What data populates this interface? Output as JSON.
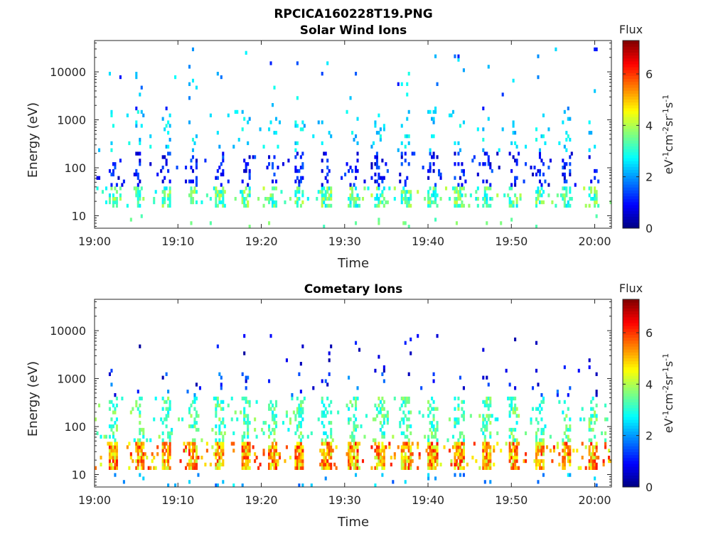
{
  "figure": {
    "title": "RPCICA160228T19.PNG"
  },
  "chart_data": [
    {
      "type": "heatmap",
      "title": "Solar Wind Ions",
      "xlabel": "Time",
      "ylabel": "Energy (eV)",
      "x_ticks": [
        "19:00",
        "19:10",
        "19:20",
        "19:30",
        "19:40",
        "19:50",
        "20:00"
      ],
      "x_range_minutes": [
        0,
        62
      ],
      "y_ticks": [
        "10",
        "100",
        "1000",
        "10000"
      ],
      "y_scale": "log",
      "y_range": [
        5.5,
        45000
      ],
      "sweep_period_minutes": 3.2,
      "sweep_start_minutes": 1.6,
      "bands": [
        {
          "energy_range": [
            16,
            40
          ],
          "flux_range": [
            2.5,
            4.2
          ],
          "density": 0.55
        },
        {
          "energy_range": [
            40,
            220
          ],
          "flux_range": [
            0.4,
            1.6
          ],
          "density": 0.22
        },
        {
          "energy_range": [
            200,
            1600
          ],
          "flux_range": [
            2.0,
            3.0
          ],
          "density": 0.09
        },
        {
          "energy_range": [
            1000,
            30000
          ],
          "flux_range": [
            1.0,
            3.0
          ],
          "density": 0.025
        },
        {
          "energy_range": [
            5.5,
            10
          ],
          "flux_range": [
            3.2,
            3.8
          ],
          "density": 0.05
        }
      ],
      "colorbar": {
        "title": "Flux",
        "label": "eV-1cm-2sr-1s-1",
        "label_parts": [
          {
            "text": "eV"
          },
          {
            "sup": "-1"
          },
          {
            "text": "cm"
          },
          {
            "sup": "-2"
          },
          {
            "text": "sr"
          },
          {
            "sup": "-1"
          },
          {
            "text": "s"
          },
          {
            "sup": "-1"
          }
        ],
        "range": [
          0,
          7.3
        ],
        "ticks": [
          "0",
          "2",
          "4",
          "6"
        ],
        "colormap": "jet"
      },
      "grid": false
    },
    {
      "type": "heatmap",
      "title": "Cometary Ions",
      "xlabel": "Time",
      "ylabel": "Energy (eV)",
      "x_ticks": [
        "19:00",
        "19:10",
        "19:20",
        "19:30",
        "19:40",
        "19:50",
        "20:00"
      ],
      "x_range_minutes": [
        0,
        62
      ],
      "y_ticks": [
        "10",
        "100",
        "1000",
        "10000"
      ],
      "y_scale": "log",
      "y_range": [
        5.5,
        45000
      ],
      "sweep_period_minutes": 3.2,
      "sweep_start_minutes": 1.6,
      "bands": [
        {
          "energy_range": [
            12,
            45
          ],
          "flux_range": [
            4.0,
            6.3
          ],
          "density": 0.85
        },
        {
          "energy_range": [
            45,
            400
          ],
          "flux_range": [
            2.6,
            4.0
          ],
          "density": 0.35
        },
        {
          "energy_range": [
            150,
            1500
          ],
          "flux_range": [
            0.3,
            2.0
          ],
          "density": 0.05
        },
        {
          "energy_range": [
            1500,
            8000
          ],
          "flux_range": [
            0.2,
            1.2
          ],
          "density": 0.02
        },
        {
          "energy_range": [
            5.5,
            10
          ],
          "flux_range": [
            1.5,
            2.8
          ],
          "density": 0.04
        }
      ],
      "colorbar": {
        "title": "Flux",
        "label": "eV-1cm-2sr-1s-1",
        "label_parts": [
          {
            "text": "eV"
          },
          {
            "sup": "-1"
          },
          {
            "text": "cm"
          },
          {
            "sup": "-2"
          },
          {
            "text": "sr"
          },
          {
            "sup": "-1"
          },
          {
            "text": "s"
          },
          {
            "sup": "-1"
          }
        ],
        "range": [
          0,
          7.3
        ],
        "ticks": [
          "0",
          "2",
          "4",
          "6"
        ],
        "colormap": "jet"
      },
      "grid": false
    }
  ]
}
